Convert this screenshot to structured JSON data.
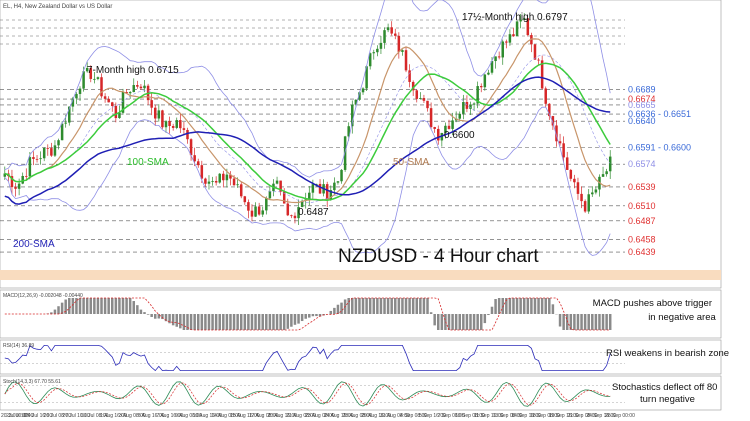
{
  "header": {
    "symbol": "EL, H4, New Zealand Dollar vs US Dollar"
  },
  "title": "NZDUSD - 4 Hour chart",
  "colors": {
    "candle_up": "#2e8b2e",
    "candle_down": "#d62728",
    "sma50": "#c8956a",
    "sma100": "#3ccc3c",
    "sma200": "#1f1fb4",
    "bollinger": "#8f8fe6",
    "support": "#e03030",
    "resistance": "#3a6ad8",
    "highlight_band": "#f9dcbf"
  },
  "chart_data": [
    {
      "type": "candlestick",
      "name": "main",
      "ylim": [
        0.639,
        0.682
      ],
      "x_ticks": [
        "20 Jul 00:00",
        "23 Jul 16:00",
        "24 Jul 16:00",
        "26 Jul 08:00",
        "27 Jul 16:00",
        "31 Jul 08:00",
        "1 Aug 16:00",
        "3 Aug 08:00",
        "6 Aug 16:00",
        "7 Aug 16:00",
        "9 Aug 08:00",
        "10 Aug 16:00",
        "14 Aug 08:00",
        "15 Aug 16:00",
        "17 Aug 08:00",
        "20 Aug 16:00",
        "21 Aug 08:00",
        "23 Aug 08:00",
        "24 Aug 16:00",
        "28 Aug 08:00",
        "29 Aug 16:00",
        "31 Aug 08:00",
        "4 Sep 08:00",
        "5 Sep 16:00",
        "7 Sep 08:00",
        "10 Sep 08:00",
        "11 Sep 16:00",
        "13 Sep 08:00",
        "14 Sep 16:00",
        "18 Sep 08:00",
        "19 Sep 16:00",
        "21 Sep 08:00",
        "24 Sep 16:00",
        "26 Sep 00:00"
      ],
      "close_path": [
        0.656,
        0.654,
        0.6575,
        0.659,
        0.66,
        0.665,
        0.67,
        0.6715,
        0.668,
        0.665,
        0.669,
        0.67,
        0.666,
        0.663,
        0.664,
        0.66,
        0.656,
        0.654,
        0.656,
        0.653,
        0.65,
        0.651,
        0.654,
        0.6487,
        0.652,
        0.654,
        0.653,
        0.655,
        0.665,
        0.67,
        0.676,
        0.678,
        0.675,
        0.67,
        0.666,
        0.662,
        0.664,
        0.666,
        0.668,
        0.672,
        0.675,
        0.677,
        0.6797,
        0.674,
        0.666,
        0.66,
        0.6539,
        0.651,
        0.654,
        0.6574
      ],
      "levels": [
        {
          "value": 0.6689,
          "label": "0.6689",
          "color": "#3a6ad8"
        },
        {
          "value": 0.6674,
          "label": "0.6674",
          "color": "#e03030"
        },
        {
          "value": 0.6665,
          "label": "0.6665",
          "color": "#8f8fe6"
        },
        {
          "value": 0.6651,
          "label": "0.6636 - 0.6651",
          "color": "#3a6ad8"
        },
        {
          "value": 0.664,
          "label": "0.6640",
          "color": "#3a6ad8"
        },
        {
          "value": 0.66,
          "label": "0.6591 - 0.6600",
          "color": "#3a6ad8"
        },
        {
          "value": 0.6574,
          "label": "0.6574",
          "color": "#8f8fe6"
        },
        {
          "value": 0.6539,
          "label": "0.6539",
          "color": "#e03030"
        },
        {
          "value": 0.651,
          "label": "0.6510",
          "color": "#e03030"
        },
        {
          "value": 0.6487,
          "label": "0.6487",
          "color": "#e03030"
        },
        {
          "value": 0.6458,
          "label": "0.6458",
          "color": "#e03030"
        },
        {
          "value": 0.6439,
          "label": "0.6439",
          "color": "#e03030"
        }
      ],
      "annotations": [
        {
          "text": "17½-Month high 0.6797"
        },
        {
          "text": "7-Month high 0.6715"
        },
        {
          "text": "0.6600"
        },
        {
          "text": "0.6487"
        },
        {
          "text": "100-SMA"
        },
        {
          "text": "50-SMA"
        },
        {
          "text": "200-SMA"
        }
      ]
    },
    {
      "type": "histogram",
      "name": "MACD",
      "header": "MACD(12,26,9) -0.002048 -0.00440",
      "annotation": "MACD pushes above trigger in negative area"
    },
    {
      "type": "line",
      "name": "RSI",
      "header": "RSI(14) 36.89",
      "annotation": "RSI weakens in bearish zone"
    },
    {
      "type": "line",
      "name": "Stochastics",
      "header": "Stoch(14,3,3) 67.70 55.61",
      "annotation": "Stochastics deflect off 80 turn negative"
    }
  ],
  "annotations_text": {
    "high_17m": "17½-Month high 0.6797",
    "high_7m": "7-Month high 0.6715",
    "low_6600": "0.6600",
    "low_6487": "0.6487",
    "sma100": "100-SMA",
    "sma50": "50-SMA",
    "sma200": "200-SMA",
    "macd": [
      "MACD pushes above trigger",
      "in negative area"
    ],
    "rsi": "RSI weakens in bearish zone",
    "stoch": [
      "Stochastics deflect off 80",
      "turn negative"
    ]
  },
  "macd_header": "MACD(12,26,9) -0.002048 -0.00440",
  "rsi_header": "RSI(14) 36.89",
  "stoch_header": "Stoch(14,3,3) 67.70 55.61"
}
